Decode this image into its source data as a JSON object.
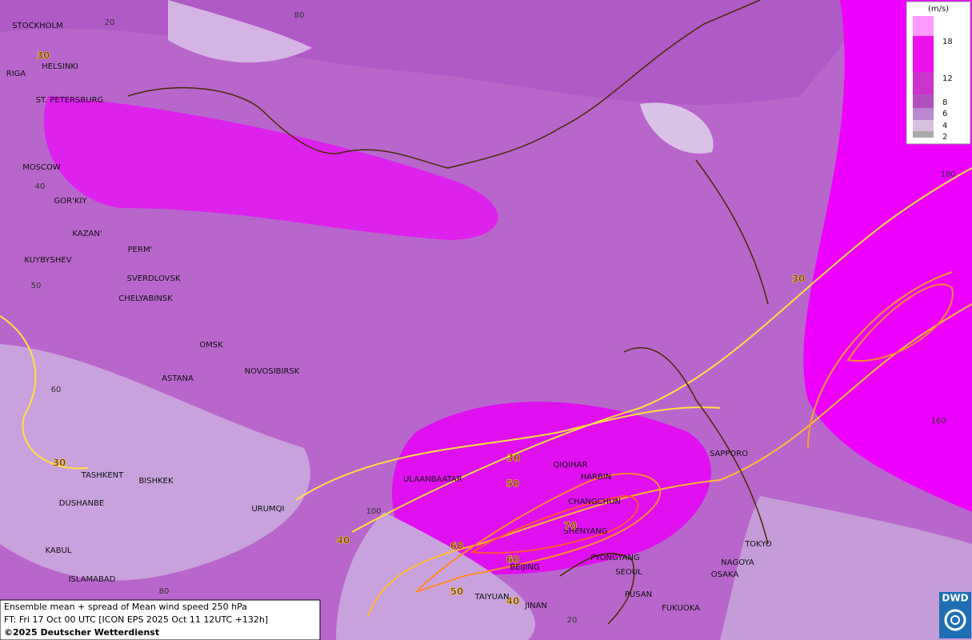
{
  "map": {
    "cities": [
      "STOCKHOLM",
      "HELSINKI",
      "RIGA",
      "ST. PETERSBURG",
      "MOSCOW",
      "GOR'KIY",
      "KAZAN'",
      "PERM'",
      "KUYBYSHEV",
      "SVERDLOVSK",
      "CHELYABINSK",
      "OMSK",
      "ASTANA",
      "NOVOSIBIRSK",
      "TASHKENT",
      "BISHKEK",
      "DUSHANBE",
      "URUMQI",
      "KABUL",
      "ISLAMABAD",
      "ULAANBAATAR",
      "QIQIHAR",
      "HARBIN",
      "CHANGCHUN",
      "SHENYANG",
      "PYONGYANG",
      "BEIJING",
      "SEOUL",
      "TAIYUAN",
      "JINAN",
      "PUSAN",
      "FUKUOKA",
      "SAPPORO",
      "TOKYO",
      "NAGOYA",
      "OSAKA"
    ],
    "grid_labels": [
      20,
      80,
      40,
      50,
      60,
      100,
      80,
      20,
      180,
      160
    ],
    "contour_labels": [
      30,
      30,
      30,
      30,
      50,
      70,
      60,
      60,
      40,
      50,
      40
    ]
  },
  "legend": {
    "unit": "(m/s)",
    "levels": [
      18,
      12,
      8,
      6,
      4,
      2
    ]
  },
  "footer": {
    "line1": "Ensemble mean + spread of Mean wind speed 250 hPa",
    "line2": "FT: Fri 17 Oct 00 UTC [ICON EPS 2025 Oct 11 12UTC +132h]",
    "line3": "©2025 Deutscher Wetterdienst"
  },
  "logo": "DWD"
}
